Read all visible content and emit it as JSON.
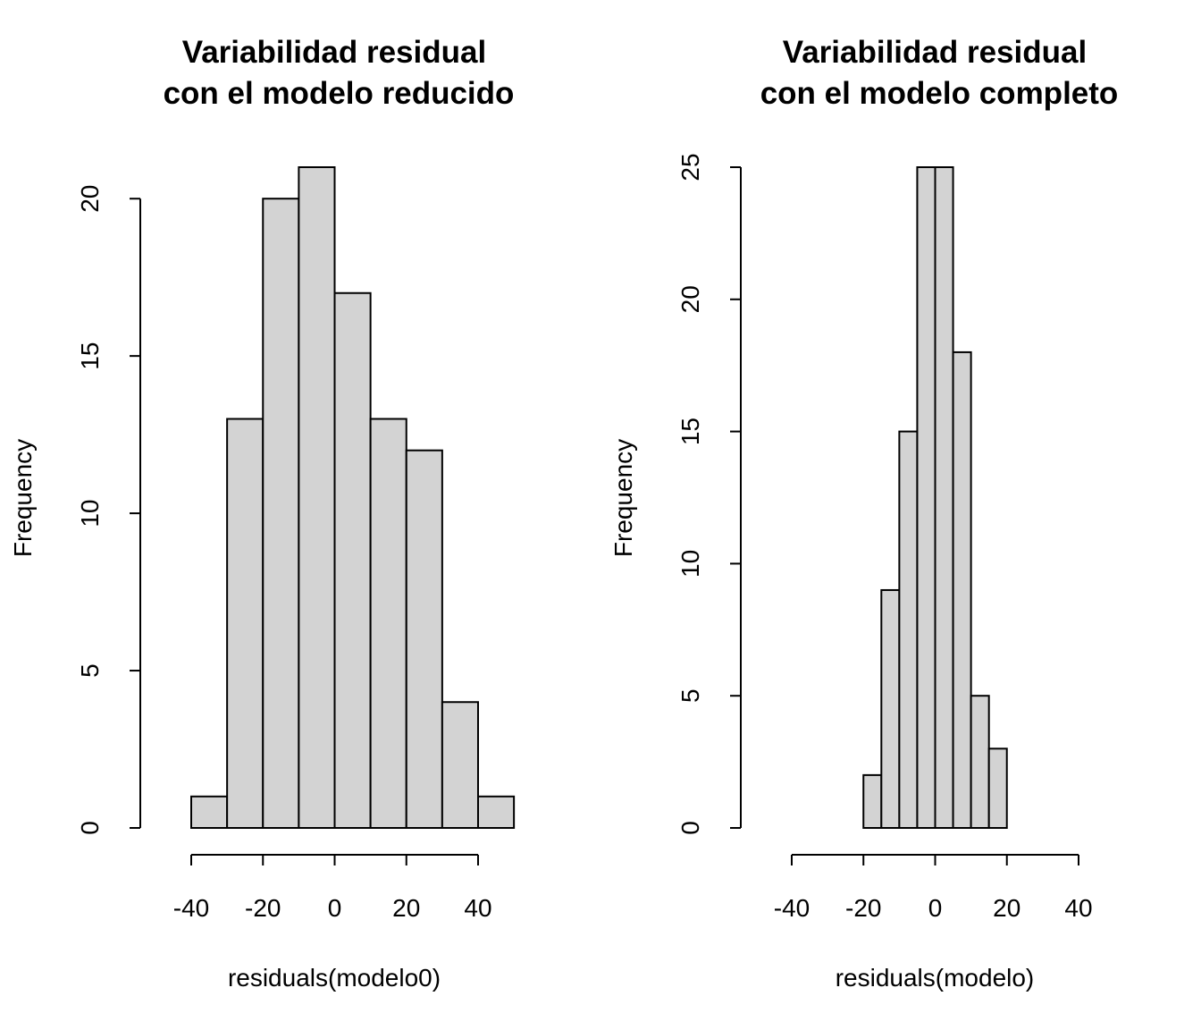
{
  "chart_data": [
    {
      "type": "bar",
      "title": "Variabilidad residual\ncon el modelo reducido",
      "title_lines": [
        "Variabilidad residual",
        "con el modelo reducido"
      ],
      "xlabel": "residuals(modelo0)",
      "ylabel": "Frequency",
      "bin_edges": [
        -40,
        -30,
        -20,
        -10,
        0,
        10,
        20,
        30,
        40,
        50
      ],
      "values": [
        1,
        13,
        20,
        21,
        17,
        13,
        12,
        4,
        1
      ],
      "x_ticks": [
        -40,
        -20,
        0,
        20,
        40
      ],
      "y_ticks": [
        0,
        5,
        10,
        15,
        20
      ],
      "xlim": [
        -40,
        40
      ],
      "ylim": [
        0,
        21
      ]
    },
    {
      "type": "bar",
      "title": "Variabilidad residual\ncon el modelo completo",
      "title_lines": [
        "Variabilidad residual",
        "con el modelo completo"
      ],
      "xlabel": "residuals(modelo)",
      "ylabel": "Frequency",
      "bin_edges": [
        -20,
        -15,
        -10,
        -5,
        0,
        5,
        10,
        15,
        20
      ],
      "values": [
        2,
        9,
        15,
        25,
        25,
        18,
        5,
        3
      ],
      "x_ticks": [
        -40,
        -20,
        0,
        20,
        40
      ],
      "y_ticks": [
        0,
        5,
        10,
        15,
        20,
        25
      ],
      "xlim": [
        -40,
        40
      ],
      "ylim": [
        0,
        25
      ]
    }
  ]
}
